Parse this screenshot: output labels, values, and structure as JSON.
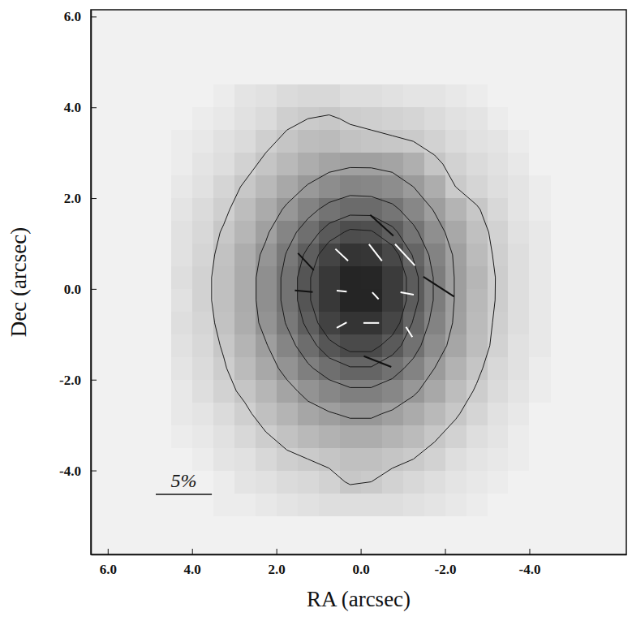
{
  "chart_data": {
    "type": "heatmap",
    "x_label": "RA (arcsec)",
    "y_label": "Dec (arcsec)",
    "xlim": [
      6.4,
      -6.3
    ],
    "ylim": [
      -5.85,
      6.15
    ],
    "xticks": [
      {
        "value": 6,
        "label": "6.0"
      },
      {
        "value": 4,
        "label": "4.0"
      },
      {
        "value": 2,
        "label": "2.0"
      },
      {
        "value": 0,
        "label": "0.0"
      },
      {
        "value": -2,
        "label": "-2.0"
      },
      {
        "value": -4,
        "label": "-4.0"
      }
    ],
    "yticks": [
      {
        "value": -4,
        "label": "-4.0"
      },
      {
        "value": -2,
        "label": "-2.0"
      },
      {
        "value": 0,
        "label": "0.0"
      },
      {
        "value": 2,
        "label": "2.0"
      },
      {
        "value": 4,
        "label": "4.0"
      },
      {
        "value": 6,
        "label": "6.0"
      }
    ],
    "x": [
      4.25,
      3.75,
      3.25,
      2.75,
      2.25,
      1.75,
      1.25,
      0.75,
      0.25,
      -0.25,
      -0.75,
      -1.25,
      -1.75,
      -2.25,
      -2.75,
      -3.25,
      -3.75,
      -4.25
    ],
    "y": [
      4.25,
      3.75,
      3.25,
      2.75,
      2.25,
      1.75,
      1.25,
      0.75,
      0.25,
      -0.25,
      -0.75,
      -1.25,
      -1.75,
      -2.25,
      -2.75,
      -3.25,
      -3.75,
      -4.25,
      -4.75
    ],
    "z": [
      [
        0,
        0,
        1,
        3,
        4,
        6,
        7,
        7,
        5,
        5,
        4,
        3,
        3,
        2,
        1,
        0,
        0,
        0
      ],
      [
        0,
        1,
        2,
        4,
        6,
        10,
        12,
        13,
        11,
        10,
        9,
        8,
        6,
        4,
        3,
        1,
        0,
        0
      ],
      [
        1,
        2,
        4,
        6,
        10,
        14,
        17,
        18,
        15,
        14,
        13,
        12,
        9,
        6,
        4,
        3,
        1,
        0
      ],
      [
        1,
        3,
        5,
        9,
        14,
        19,
        24,
        28,
        30,
        30,
        28,
        23,
        14,
        9,
        6,
        4,
        2,
        0
      ],
      [
        2,
        4,
        8,
        13,
        19,
        26,
        33,
        39,
        43,
        42,
        39,
        32,
        24,
        12,
        8,
        5,
        3,
        1
      ],
      [
        3,
        6,
        10,
        17,
        25,
        34,
        44,
        52,
        56,
        56,
        51,
        42,
        31,
        21,
        13,
        7,
        3,
        1
      ],
      [
        4,
        7,
        13,
        20,
        30,
        43,
        54,
        65,
        72,
        71,
        63,
        51,
        38,
        26,
        16,
        9,
        4,
        2
      ],
      [
        4,
        8,
        15,
        24,
        35,
        49,
        63,
        77,
        86,
        85,
        75,
        59,
        44,
        30,
        18,
        10,
        5,
        2
      ],
      [
        5,
        9,
        16,
        25,
        38,
        52,
        68,
        84,
        95,
        94,
        82,
        64,
        47,
        31,
        20,
        11,
        5,
        2
      ],
      [
        4,
        9,
        16,
        25,
        38,
        52,
        68,
        84,
        95,
        95,
        82,
        64,
        47,
        31,
        19,
        11,
        5,
        2
      ],
      [
        5,
        8,
        15,
        24,
        36,
        49,
        63,
        78,
        86,
        86,
        76,
        59,
        44,
        30,
        18,
        10,
        5,
        2
      ],
      [
        4,
        7,
        13,
        21,
        31,
        43,
        55,
        67,
        74,
        74,
        65,
        53,
        39,
        27,
        17,
        9,
        4,
        2
      ],
      [
        3,
        6,
        11,
        18,
        26,
        36,
        46,
        54,
        59,
        59,
        53,
        44,
        32,
        22,
        14,
        7,
        4,
        1
      ],
      [
        2,
        5,
        9,
        14,
        20,
        28,
        36,
        42,
        46,
        46,
        42,
        34,
        26,
        17,
        11,
        6,
        3,
        1
      ],
      [
        2,
        3,
        6,
        10,
        16,
        21,
        27,
        31,
        34,
        34,
        30,
        25,
        19,
        13,
        8,
        4,
        2,
        0
      ],
      [
        1,
        2,
        4,
        7,
        11,
        15,
        19,
        22,
        24,
        24,
        21,
        18,
        13,
        9,
        5,
        3,
        1,
        0
      ],
      [
        0,
        1,
        3,
        4,
        7,
        10,
        12,
        14,
        16,
        16,
        14,
        12,
        9,
        5,
        3,
        2,
        1,
        0
      ],
      [
        0,
        0,
        1,
        3,
        4,
        6,
        7,
        9,
        13,
        12,
        9,
        7,
        5,
        3,
        2,
        1,
        0,
        0
      ],
      [
        0,
        0,
        1,
        1,
        2,
        3,
        4,
        5,
        5,
        5,
        5,
        4,
        3,
        2,
        1,
        0,
        0,
        0
      ]
    ],
    "zlim": [
      0,
      100
    ],
    "contour_levels": [
      12,
      32,
      48,
      60,
      70
    ],
    "vectors": {
      "x": [
        0.45,
        -0.35,
        -1.05,
        0.45,
        -0.35,
        -1.1,
        0.45,
        -0.25,
        -1.15,
        1.3,
        1.35,
        -0.5,
        -1.85,
        -0.4
      ],
      "y": [
        0.75,
        0.8,
        0.75,
        -0.05,
        -0.15,
        -0.1,
        -0.8,
        -0.75,
        -0.95,
        0.6,
        -0.05,
        1.4,
        0.05,
        -1.6
      ],
      "p": [
        1.5,
        1.8,
        2.5,
        0.9,
        0.8,
        1.2,
        1.0,
        1.4,
        1.0,
        2.0,
        1.6,
        2.7,
        3.2,
        2.6
      ],
      "angle": [
        49,
        40,
        45,
        85,
        45,
        80,
        117,
        90,
        34,
        45,
        85,
        50,
        59,
        70
      ],
      "colors": [
        "#ffffff",
        "#ffffff",
        "#ffffff",
        "#ffffff",
        "#ffffff",
        "#ffffff",
        "#ffffff",
        "#ffffff",
        "#ffffff",
        "#111111",
        "#111111",
        "#111111",
        "#111111",
        "#111111"
      ]
    },
    "scale_bar": {
      "value": 5,
      "label": "5%",
      "length": 1.33
    }
  }
}
